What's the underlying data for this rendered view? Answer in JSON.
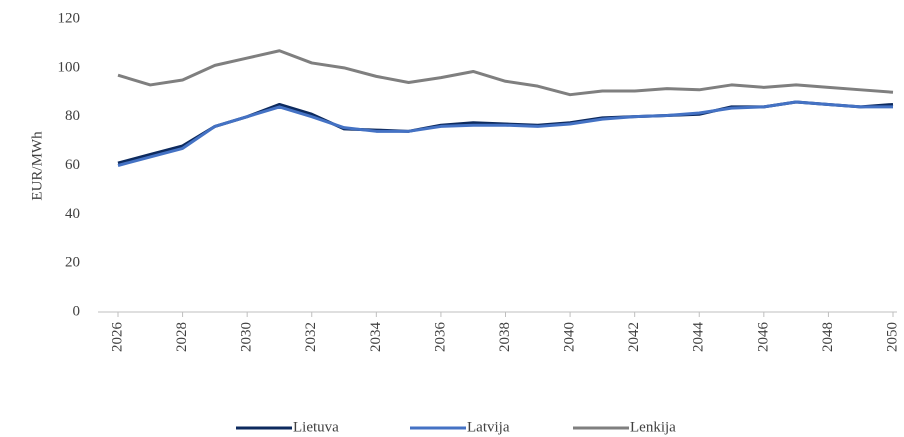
{
  "chart_data": {
    "type": "line",
    "y_label": "EUR/MWh",
    "x": [
      2026,
      2027,
      2028,
      2029,
      2030,
      2031,
      2032,
      2033,
      2034,
      2035,
      2036,
      2037,
      2038,
      2039,
      2040,
      2041,
      2042,
      2043,
      2044,
      2045,
      2046,
      2047,
      2048,
      2049,
      2050
    ],
    "series": [
      {
        "name": "Lietuva",
        "color": "#0d2a5e",
        "values": [
          61,
          64.5,
          68,
          76,
          80,
          85,
          81,
          75,
          74.5,
          74,
          76.5,
          77.5,
          77,
          76.5,
          77.5,
          79.5,
          80,
          80.5,
          81,
          84,
          84,
          86,
          85,
          84,
          85
        ]
      },
      {
        "name": "Latvija",
        "color": "#4472c4",
        "values": [
          60,
          63.5,
          67,
          76,
          80,
          84,
          80,
          75.5,
          74,
          74,
          76,
          76.5,
          76.5,
          76,
          77,
          79,
          80,
          80.5,
          81.5,
          83.5,
          84,
          86,
          85,
          84,
          84
        ]
      },
      {
        "name": "Lenkija",
        "color": "#7f7f7f",
        "values": [
          97,
          93,
          95,
          101,
          104,
          107,
          102,
          100,
          96.5,
          94,
          96,
          98.5,
          94.5,
          92.5,
          89,
          90.5,
          90.5,
          91.5,
          91,
          93,
          92,
          93,
          92,
          91,
          90
        ]
      }
    ],
    "xlim": [
      2026,
      2050
    ],
    "xticks": [
      2026,
      2028,
      2030,
      2032,
      2034,
      2036,
      2038,
      2040,
      2042,
      2044,
      2046,
      2048,
      2050
    ],
    "ylim": [
      0,
      120
    ],
    "yticks": [
      0,
      20,
      40,
      60,
      80,
      100,
      120
    ],
    "grid": false,
    "legend": "bottom"
  }
}
